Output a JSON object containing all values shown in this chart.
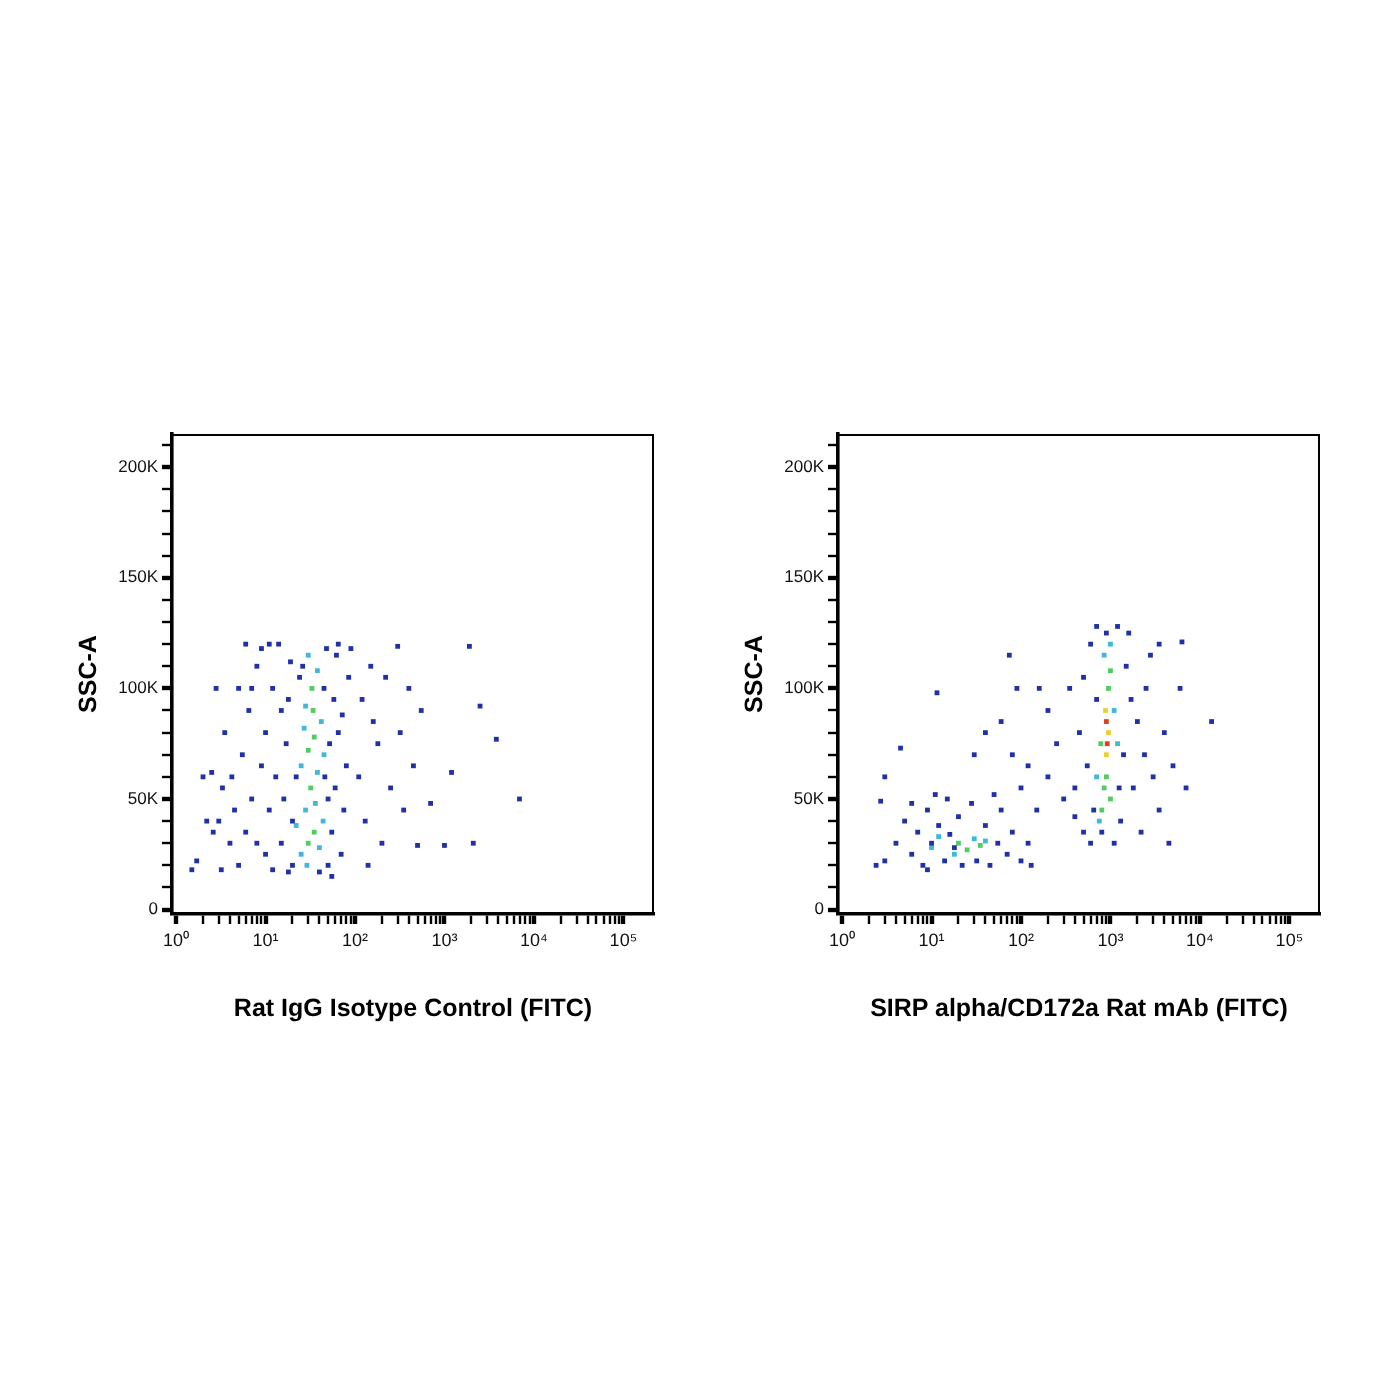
{
  "chart_data": [
    {
      "type": "scatter",
      "xlabel": "Rat IgG Isotype Control (FITC)",
      "ylabel": "SSC-A",
      "log": "x",
      "grid": false,
      "marker": "square",
      "xlim": [
        0.9,
        220000
      ],
      "ylim": [
        -2000,
        215000
      ],
      "xticks": [
        {
          "value": 1,
          "label": "10⁰"
        },
        {
          "value": 2,
          "label": null
        },
        {
          "value": 3,
          "label": null
        },
        {
          "value": 4,
          "label": null
        },
        {
          "value": 5,
          "label": null
        },
        {
          "value": 6,
          "label": null
        },
        {
          "value": 7,
          "label": null
        },
        {
          "value": 8,
          "label": null
        },
        {
          "value": 9,
          "label": null
        },
        {
          "value": 10,
          "label": "10¹"
        },
        {
          "value": 20,
          "label": null
        },
        {
          "value": 30,
          "label": null
        },
        {
          "value": 40,
          "label": null
        },
        {
          "value": 50,
          "label": null
        },
        {
          "value": 60,
          "label": null
        },
        {
          "value": 70,
          "label": null
        },
        {
          "value": 80,
          "label": null
        },
        {
          "value": 90,
          "label": null
        },
        {
          "value": 100,
          "label": "10²"
        },
        {
          "value": 200,
          "label": null
        },
        {
          "value": 300,
          "label": null
        },
        {
          "value": 400,
          "label": null
        },
        {
          "value": 500,
          "label": null
        },
        {
          "value": 600,
          "label": null
        },
        {
          "value": 700,
          "label": null
        },
        {
          "value": 800,
          "label": null
        },
        {
          "value": 900,
          "label": null
        },
        {
          "value": 1000,
          "label": "10³"
        },
        {
          "value": 2000,
          "label": null
        },
        {
          "value": 3000,
          "label": null
        },
        {
          "value": 4000,
          "label": null
        },
        {
          "value": 5000,
          "label": null
        },
        {
          "value": 6000,
          "label": null
        },
        {
          "value": 7000,
          "label": null
        },
        {
          "value": 8000,
          "label": null
        },
        {
          "value": 9000,
          "label": null
        },
        {
          "value": 10000,
          "label": "10⁴"
        },
        {
          "value": 20000,
          "label": null
        },
        {
          "value": 30000,
          "label": null
        },
        {
          "value": 40000,
          "label": null
        },
        {
          "value": 50000,
          "label": null
        },
        {
          "value": 60000,
          "label": null
        },
        {
          "value": 70000,
          "label": null
        },
        {
          "value": 80000,
          "label": null
        },
        {
          "value": 90000,
          "label": null
        },
        {
          "value": 100000,
          "label": "10⁵"
        }
      ],
      "yticks": [
        0,
        {
          "value": 10000,
          "label": null
        },
        {
          "value": 20000,
          "label": null
        },
        {
          "value": 30000,
          "label": null
        },
        {
          "value": 40000,
          "label": null
        },
        {
          "value": 50000,
          "label": "50K"
        },
        {
          "value": 60000,
          "label": null
        },
        {
          "value": 70000,
          "label": null
        },
        {
          "value": 80000,
          "label": null
        },
        {
          "value": 90000,
          "label": null
        },
        {
          "value": 100000,
          "label": "100K"
        },
        {
          "value": 110000,
          "label": null
        },
        {
          "value": 120000,
          "label": null
        },
        {
          "value": 130000,
          "label": null
        },
        {
          "value": 140000,
          "label": null
        },
        {
          "value": 150000,
          "label": "150K"
        },
        {
          "value": 160000,
          "label": null
        },
        {
          "value": 170000,
          "label": null
        },
        {
          "value": 180000,
          "label": null
        },
        {
          "value": 190000,
          "label": null
        },
        {
          "value": 200000,
          "label": "200K"
        },
        {
          "value": 210000,
          "label": null
        }
      ],
      "series": [
        {
          "color": "#2030a8",
          "x": [
            5,
            6,
            7,
            5.5,
            6.5,
            8,
            9,
            10,
            12,
            11,
            13,
            10,
            12,
            14,
            15,
            16,
            17,
            18,
            19,
            20,
            22,
            24,
            50,
            55,
            60,
            52,
            58,
            62,
            70,
            75,
            80,
            72,
            85,
            90,
            65,
            48,
            18,
            8,
            9,
            7,
            11,
            15,
            45,
            50,
            65,
            4.5,
            4.2,
            5,
            6,
            3.5,
            4,
            3,
            3.3,
            20,
            26,
            46,
            55,
            40,
            1.5,
            1.7,
            2.2,
            2.6,
            2.5,
            2,
            2.8,
            3.2,
            110,
            120,
            130,
            150,
            180,
            200,
            250,
            300,
            320,
            350,
            400,
            450,
            500,
            550,
            700,
            1000,
            1200,
            1900,
            2100,
            2500,
            3800,
            6900,
            140,
            160,
            220
          ],
          "values": [
            20000,
            35000,
            50000,
            70000,
            90000,
            110000,
            118000,
            25000,
            18000,
            45000,
            60000,
            80000,
            100000,
            120000,
            30000,
            50000,
            75000,
            95000,
            112000,
            20000,
            60000,
            105000,
            20000,
            35000,
            55000,
            75000,
            95000,
            115000,
            25000,
            45000,
            65000,
            88000,
            105000,
            118000,
            120000,
            118000,
            17000,
            30000,
            65000,
            100000,
            120000,
            90000,
            100000,
            50000,
            80000,
            45000,
            60000,
            100000,
            120000,
            80000,
            30000,
            40000,
            55000,
            40000,
            110000,
            60000,
            15000,
            17000,
            18000,
            22000,
            40000,
            35000,
            62000,
            60000,
            100000,
            18000,
            60000,
            95000,
            40000,
            110000,
            75000,
            30000,
            55000,
            119000,
            80000,
            45000,
            100000,
            65000,
            29000,
            90000,
            48000,
            29000,
            62000,
            119000,
            30000,
            92000,
            77000,
            50000,
            20000,
            85000,
            105000
          ]
        },
        {
          "color": "#40b8d8",
          "x": [
            25,
            40,
            28,
            38,
            42,
            28,
            38,
            30,
            45,
            25,
            36,
            22,
            44,
            27,
            29
          ],
          "values": [
            25000,
            28000,
            45000,
            62000,
            85000,
            92000,
            108000,
            115000,
            70000,
            65000,
            48000,
            38000,
            40000,
            82000,
            20000
          ]
        },
        {
          "color": "#50cc60",
          "x": [
            30,
            35,
            32,
            30,
            35,
            33,
            34
          ],
          "values": [
            30000,
            35000,
            55000,
            72000,
            78000,
            100000,
            90000
          ]
        }
      ]
    },
    {
      "type": "scatter",
      "xlabel": "SIRP alpha/CD172a Rat mAb (FITC)",
      "ylabel": "SSC-A",
      "log": "x",
      "grid": false,
      "marker": "square",
      "xlim": [
        0.9,
        220000
      ],
      "ylim": [
        -2000,
        215000
      ],
      "xticks": [
        {
          "value": 1,
          "label": "10⁰"
        },
        {
          "value": 2,
          "label": null
        },
        {
          "value": 3,
          "label": null
        },
        {
          "value": 4,
          "label": null
        },
        {
          "value": 5,
          "label": null
        },
        {
          "value": 6,
          "label": null
        },
        {
          "value": 7,
          "label": null
        },
        {
          "value": 8,
          "label": null
        },
        {
          "value": 9,
          "label": null
        },
        {
          "value": 10,
          "label": "10¹"
        },
        {
          "value": 20,
          "label": null
        },
        {
          "value": 30,
          "label": null
        },
        {
          "value": 40,
          "label": null
        },
        {
          "value": 50,
          "label": null
        },
        {
          "value": 60,
          "label": null
        },
        {
          "value": 70,
          "label": null
        },
        {
          "value": 80,
          "label": null
        },
        {
          "value": 90,
          "label": null
        },
        {
          "value": 100,
          "label": "10²"
        },
        {
          "value": 200,
          "label": null
        },
        {
          "value": 300,
          "label": null
        },
        {
          "value": 400,
          "label": null
        },
        {
          "value": 500,
          "label": null
        },
        {
          "value": 600,
          "label": null
        },
        {
          "value": 700,
          "label": null
        },
        {
          "value": 800,
          "label": null
        },
        {
          "value": 900,
          "label": null
        },
        {
          "value": 1000,
          "label": "10³"
        },
        {
          "value": 2000,
          "label": null
        },
        {
          "value": 3000,
          "label": null
        },
        {
          "value": 4000,
          "label": null
        },
        {
          "value": 5000,
          "label": null
        },
        {
          "value": 6000,
          "label": null
        },
        {
          "value": 7000,
          "label": null
        },
        {
          "value": 8000,
          "label": null
        },
        {
          "value": 9000,
          "label": null
        },
        {
          "value": 10000,
          "label": "10⁴"
        },
        {
          "value": 20000,
          "label": null
        },
        {
          "value": 30000,
          "label": null
        },
        {
          "value": 40000,
          "label": null
        },
        {
          "value": 50000,
          "label": null
        },
        {
          "value": 60000,
          "label": null
        },
        {
          "value": 70000,
          "label": null
        },
        {
          "value": 80000,
          "label": null
        },
        {
          "value": 90000,
          "label": null
        },
        {
          "value": 100000,
          "label": "10⁵"
        }
      ],
      "yticks": [
        0,
        {
          "value": 10000,
          "label": null
        },
        {
          "value": 20000,
          "label": null
        },
        {
          "value": 30000,
          "label": null
        },
        {
          "value": 40000,
          "label": null
        },
        {
          "value": 50000,
          "label": "50K"
        },
        {
          "value": 60000,
          "label": null
        },
        {
          "value": 70000,
          "label": null
        },
        {
          "value": 80000,
          "label": null
        },
        {
          "value": 90000,
          "label": null
        },
        {
          "value": 100000,
          "label": "100K"
        },
        {
          "value": 110000,
          "label": null
        },
        {
          "value": 120000,
          "label": null
        },
        {
          "value": 130000,
          "label": null
        },
        {
          "value": 140000,
          "label": null
        },
        {
          "value": 150000,
          "label": "150K"
        },
        {
          "value": 160000,
          "label": null
        },
        {
          "value": 170000,
          "label": null
        },
        {
          "value": 180000,
          "label": null
        },
        {
          "value": 190000,
          "label": null
        },
        {
          "value": 200000,
          "label": "200K"
        },
        {
          "value": 210000,
          "label": null
        }
      ],
      "series": [
        {
          "color": "#2030a8",
          "x": [
            3,
            4,
            5,
            6,
            7,
            8,
            9,
            10,
            12,
            14,
            15,
            18,
            20,
            22,
            28,
            32,
            40,
            45,
            55,
            60,
            70,
            80,
            100,
            120,
            130,
            6,
            11,
            9,
            16,
            50,
            150,
            200,
            250,
            300,
            200,
            120,
            80,
            60,
            100,
            160,
            350,
            400,
            90,
            4.5,
            11.5,
            74,
            13500,
            6300,
            2.4,
            2.7,
            30,
            40,
            3,
            400,
            450,
            500,
            500,
            550,
            600,
            650,
            700,
            1300,
            1400,
            1500,
            1600,
            1800,
            2000,
            2200,
            2500,
            3000,
            3500,
            4000,
            5000,
            6000,
            4500,
            1200,
            700,
            600,
            800,
            1100,
            2800,
            3500,
            7000,
            900,
            1700,
            2400,
            1250
          ],
          "values": [
            22000,
            30000,
            40000,
            25000,
            35000,
            20000,
            45000,
            30000,
            38000,
            22000,
            50000,
            28000,
            42000,
            20000,
            48000,
            22000,
            38000,
            20000,
            30000,
            45000,
            25000,
            35000,
            22000,
            30000,
            20000,
            48000,
            52000,
            18000,
            34000,
            52000,
            45000,
            60000,
            75000,
            50000,
            90000,
            65000,
            70000,
            85000,
            55000,
            100000,
            100000,
            42000,
            100000,
            73000,
            98000,
            115000,
            85000,
            121000,
            20000,
            49000,
            70000,
            80000,
            60000,
            55000,
            80000,
            105000,
            35000,
            65000,
            120000,
            45000,
            95000,
            40000,
            70000,
            110000,
            125000,
            55000,
            85000,
            35000,
            100000,
            60000,
            45000,
            80000,
            65000,
            100000,
            30000,
            128000,
            128000,
            30000,
            35000,
            30000,
            115000,
            120000,
            55000,
            125000,
            95000,
            70000,
            55000
          ]
        },
        {
          "color": "#40b8d8",
          "x": [
            10,
            12,
            30,
            40,
            18,
            850,
            700,
            1100,
            1000,
            750,
            1200
          ],
          "values": [
            28000,
            33000,
            32000,
            31000,
            25000,
            115000,
            60000,
            90000,
            120000,
            40000,
            75000
          ]
        },
        {
          "color": "#50cc60",
          "x": [
            20,
            25,
            35,
            800,
            850,
            900,
            950,
            1000,
            1000,
            780
          ],
          "values": [
            30000,
            27000,
            29000,
            45000,
            55000,
            60000,
            100000,
            108000,
            50000,
            75000
          ]
        },
        {
          "color": "#e8d030",
          "x": [
            900,
            950,
            880
          ],
          "values": [
            70000,
            80000,
            90000
          ]
        },
        {
          "color": "#e04020",
          "x": [
            920,
            900
          ],
          "values": [
            75000,
            85000
          ]
        }
      ]
    }
  ]
}
